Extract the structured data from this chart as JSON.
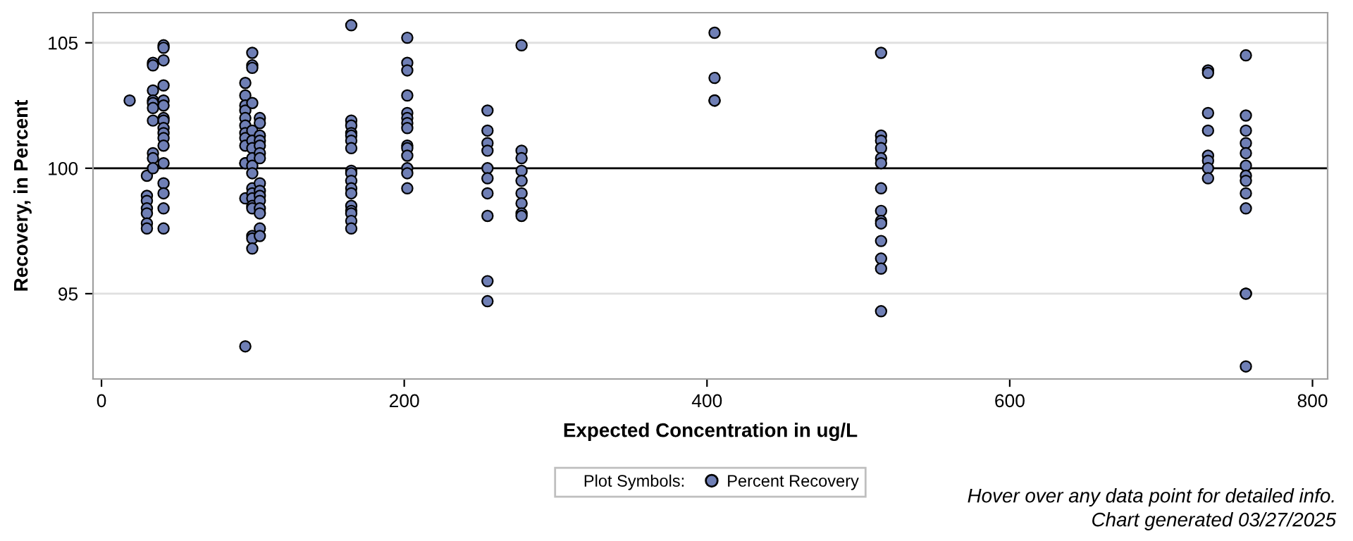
{
  "chart_data": {
    "type": "scatter",
    "xlabel": "Expected Concentration in ug/L",
    "ylabel": "Recovery, in Percent",
    "xlim": [
      -5.6,
      810
    ],
    "xticks": [
      0,
      200,
      400,
      600,
      800
    ],
    "ylim": [
      91.6,
      106.2
    ],
    "yticks": [
      95,
      100,
      105
    ],
    "grid": "y",
    "legend": "bottom",
    "legend_title": "Plot Symbols:",
    "marker": "circle",
    "ref_lines": [
      {
        "axis": "y",
        "value": 100,
        "color": "#000000"
      }
    ],
    "annotations": [
      "Hover over any data point for detailed info.",
      "Chart generated 03/27/2025"
    ],
    "series": [
      {
        "name": "Percent Recovery",
        "color": "#6f7fb5",
        "x": [
          18.6,
          30,
          30,
          30,
          30,
          30,
          30,
          30,
          34,
          34,
          34,
          34,
          34,
          34,
          34,
          34,
          34,
          34,
          41,
          41,
          41,
          41,
          41,
          41,
          41,
          41,
          41,
          41,
          41,
          41,
          41,
          41,
          41,
          41,
          41,
          95,
          95,
          95,
          95,
          95,
          95,
          95,
          95,
          95,
          95,
          95,
          95,
          95,
          99.6,
          99.6,
          99.6,
          99.6,
          99.6,
          99.6,
          99.6,
          99.6,
          99.6,
          99.6,
          99.6,
          99.6,
          99.6,
          99.6,
          99.6,
          99.6,
          99.6,
          99.6,
          104.6,
          104.6,
          104.6,
          104.6,
          104.6,
          104.6,
          104.6,
          104.6,
          104.6,
          104.6,
          104.6,
          104.6,
          104.6,
          104.6,
          104.6,
          165,
          165,
          165,
          165,
          165,
          165,
          165,
          165,
          165,
          165,
          165,
          165,
          165,
          165,
          165,
          165,
          165,
          202,
          202,
          202,
          202,
          202,
          202,
          202,
          202,
          202,
          202,
          202,
          202,
          202,
          202,
          255,
          255,
          255,
          255,
          255,
          255,
          255,
          255,
          255,
          255,
          277.5,
          277.5,
          277.5,
          277.5,
          277.5,
          277.5,
          277.5,
          277.5,
          277.5,
          405,
          405,
          405,
          405,
          515,
          515,
          515,
          515,
          515,
          515,
          515,
          515,
          515,
          515,
          515,
          515,
          515,
          515,
          731,
          731,
          731,
          731,
          731,
          731,
          731,
          731,
          756,
          756,
          756,
          756,
          756,
          756,
          756,
          756,
          756,
          756,
          756,
          756,
          756
        ],
        "values": [
          102.7,
          99.7,
          98.9,
          98.7,
          98.4,
          98.2,
          97.8,
          97.6,
          104.2,
          104.1,
          103.1,
          102.7,
          102.6,
          102.4,
          101.9,
          100.6,
          100.4,
          100.0,
          104.9,
          104.8,
          104.3,
          103.3,
          102.7,
          102.5,
          102.0,
          101.9,
          101.6,
          101.4,
          101.2,
          100.9,
          100.2,
          99.4,
          99.0,
          98.4,
          97.6,
          103.4,
          102.9,
          102.5,
          102.3,
          102.0,
          101.7,
          101.4,
          101.2,
          100.9,
          100.2,
          100.2,
          98.8,
          92.9,
          104.6,
          104.1,
          104.0,
          102.6,
          101.5,
          101.1,
          100.8,
          100.4,
          100.1,
          99.8,
          99.2,
          99.0,
          98.8,
          98.5,
          98.4,
          97.3,
          97.2,
          96.8,
          102.0,
          101.8,
          101.3,
          101.1,
          100.9,
          100.6,
          100.4,
          99.4,
          99.1,
          98.9,
          98.7,
          98.4,
          98.2,
          97.6,
          97.3,
          105.7,
          101.9,
          101.7,
          101.4,
          101.3,
          101.1,
          100.8,
          99.9,
          99.8,
          99.5,
          99.2,
          99.0,
          98.5,
          98.3,
          98.2,
          97.9,
          97.6,
          105.2,
          104.2,
          103.9,
          102.9,
          102.2,
          102.0,
          101.8,
          101.6,
          100.9,
          100.8,
          100.5,
          100.0,
          99.8,
          99.2,
          102.3,
          101.5,
          101.0,
          100.7,
          100.0,
          99.6,
          99.0,
          98.1,
          95.5,
          94.7,
          104.9,
          100.7,
          100.4,
          99.9,
          99.5,
          99.0,
          98.6,
          98.2,
          98.1,
          105.4,
          103.6,
          102.7,
          102.7,
          104.6,
          101.3,
          101.1,
          100.8,
          100.4,
          100.2,
          99.2,
          98.3,
          97.9,
          97.8,
          97.1,
          96.4,
          96.0,
          94.3,
          103.9,
          103.8,
          102.2,
          101.5,
          100.5,
          100.3,
          100.0,
          99.6,
          104.5,
          102.1,
          101.5,
          101.0,
          100.6,
          100.1,
          99.7,
          99.5,
          99.0,
          98.4,
          95.0,
          95.0,
          92.1
        ]
      }
    ]
  }
}
